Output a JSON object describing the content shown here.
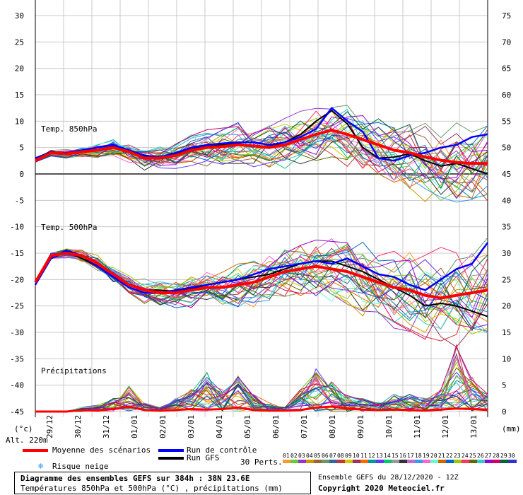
{
  "chart_data": {
    "type": "line",
    "title": "Diagramme des ensembles GEFS sur 384h : 38N 23.6E",
    "subtitle": "Températures 850hPa et 500hPa (°C) , précipitations (mm)",
    "y_left_label": "(°c)",
    "y_right_label": "(mm)",
    "altitude_label": "Alt. 220m",
    "y_left_ticks": [
      30,
      25,
      20,
      15,
      10,
      5,
      0,
      -5,
      -10,
      -15,
      -20,
      -25,
      -30,
      -35,
      -40,
      -45
    ],
    "y_right_ticks": [
      75,
      70,
      65,
      60,
      55,
      50,
      45,
      40,
      35,
      30,
      25,
      20,
      15,
      10,
      5,
      0
    ],
    "ylim": [
      -45,
      30
    ],
    "x_ticks": [
      "29/12",
      "30/12",
      "31/12",
      "01/01",
      "02/01",
      "03/01",
      "04/01",
      "05/01",
      "06/01",
      "07/01",
      "08/01",
      "09/01",
      "10/01",
      "11/01",
      "12/01",
      "13/01"
    ],
    "section_labels": {
      "t850": "Temp. 850hPa",
      "t500": "Temp. 500hPa",
      "precip": "Précipitations"
    },
    "t850_mean": [
      2.5,
      4,
      3.8,
      4.2,
      4.5,
      5,
      4.2,
      3,
      3,
      3.5,
      4.5,
      5,
      5.2,
      5.5,
      5.3,
      5,
      5.5,
      6.5,
      7.5,
      8.3,
      7.5,
      6.5,
      5.5,
      4.5,
      4,
      3.2,
      2.6,
      2.2,
      2,
      2
    ],
    "t850_control": [
      3,
      4,
      4,
      4.5,
      5,
      5.5,
      4.5,
      3.5,
      3.2,
      4,
      5,
      5.5,
      5.8,
      6,
      6,
      5.5,
      6,
      7,
      8.5,
      12.5,
      10,
      8,
      3,
      2.5,
      3.5,
      4,
      5,
      5.5,
      7,
      7.5
    ],
    "t850_gfs": [
      3,
      4.2,
      4,
      4.4,
      4.6,
      5.2,
      4.3,
      3.2,
      3.1,
      3.8,
      4.8,
      5.2,
      5.5,
      5.7,
      5.4,
      5.2,
      6,
      7.5,
      10,
      12,
      9.5,
      5,
      3,
      3.2,
      3.8,
      2.5,
      1.5,
      2,
      1,
      0
    ],
    "t500_mean": [
      -20.5,
      -15.5,
      -15,
      -15.5,
      -17,
      -19,
      -21,
      -22,
      -22.5,
      -22.5,
      -22,
      -21.5,
      -21.5,
      -21,
      -20.5,
      -19.5,
      -18.5,
      -18,
      -17.5,
      -18,
      -18.5,
      -19.5,
      -20.5,
      -21.5,
      -22,
      -23,
      -23.5,
      -23,
      -22.5,
      -22
    ],
    "t500_control": [
      -21,
      -16,
      -14.5,
      -15.5,
      -17.5,
      -19.5,
      -21.5,
      -22.5,
      -22.5,
      -22,
      -21.5,
      -21,
      -20.5,
      -20,
      -19,
      -18,
      -17.5,
      -17,
      -16.5,
      -17,
      -16,
      -17.5,
      -19,
      -19.5,
      -21,
      -22,
      -20,
      -18,
      -17,
      -13
    ],
    "t500_gfs": [
      -21,
      -16,
      -14.8,
      -16,
      -17.5,
      -19.5,
      -21,
      -22,
      -22,
      -22.3,
      -21.8,
      -21,
      -20.5,
      -20,
      -19.5,
      -19,
      -18,
      -17,
      -16.5,
      -16.5,
      -17.5,
      -18.5,
      -20,
      -21.5,
      -23,
      -25,
      -24.5,
      -25,
      -26,
      -27
    ],
    "precip_mean": [
      0,
      0,
      0,
      0.3,
      0.2,
      0.5,
      1,
      0.3,
      0.2,
      0.3,
      0.5,
      0.4,
      0.5,
      0.8,
      0.3,
      0.2,
      0.2,
      0.3,
      0.8,
      1,
      0.6,
      0.4,
      0.3,
      0.4,
      0.3,
      0.2,
      0.4,
      0.6,
      0.5,
      0.3
    ],
    "precip_peaks": [
      0,
      0,
      0,
      1,
      1.5,
      3,
      6,
      2,
      1,
      3,
      5,
      9,
      5,
      8,
      4,
      2,
      1,
      5,
      10,
      7,
      4,
      3,
      2,
      4,
      4,
      3,
      5,
      15,
      8,
      4
    ],
    "legend": {
      "mean": "Moyenne des scénarios",
      "control": "Run de contrôle",
      "gfs": "Run GFS",
      "snow": "Risque neige",
      "perts": "30 Perts."
    },
    "pert_numbers": [
      "01",
      "02",
      "03",
      "04",
      "05",
      "06",
      "07",
      "08",
      "09",
      "10",
      "11",
      "12",
      "13",
      "14",
      "15",
      "16",
      "17",
      "18",
      "19",
      "20",
      "21",
      "22",
      "23",
      "24",
      "25",
      "26",
      "27",
      "28",
      "29",
      "30"
    ],
    "pert_colors": [
      "#ff9933",
      "#66cc33",
      "#9933cc",
      "#cc9900",
      "#996633",
      "#669966",
      "#336699",
      "#cc3333",
      "#cccc00",
      "#993366",
      "#ff6600",
      "#009999",
      "#6633ff",
      "#00cc66",
      "#999999",
      "#333333",
      "#cc66cc",
      "#3399ff",
      "#ff66cc",
      "#66ffcc",
      "#cc6600",
      "#0066cc",
      "#99cc00",
      "#ff3366",
      "#666600",
      "#33cccc",
      "#9900cc",
      "#cc0066",
      "#006633",
      "#3333cc"
    ],
    "colors": {
      "mean": "#ff0000",
      "control": "#0000ff",
      "gfs": "#000000",
      "grid": "#c8c8c8"
    }
  },
  "footer": {
    "title": "Diagramme des ensembles GEFS sur 384h : 38N 23.6E",
    "subtitle": "Températures 850hPa et 500hPa (°C) , précipitations (mm)",
    "run": "Ensemble GEFS du 28/12/2020 - 12Z",
    "copyright": "Copyright 2020 Meteociel.fr"
  }
}
